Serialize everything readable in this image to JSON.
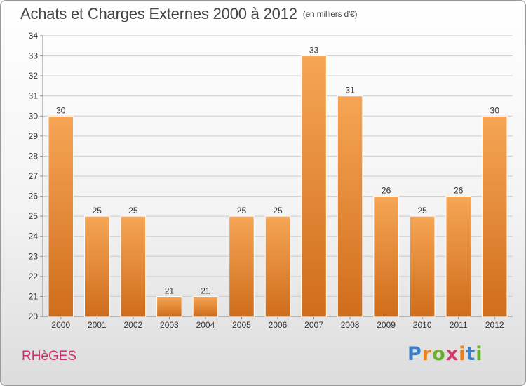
{
  "header": {
    "title": "Achats et Charges Externes 2000 à 2012",
    "unit": "(en milliers d'€)"
  },
  "place": "RHèGES",
  "logo": {
    "text": "Proxiti",
    "letter_colors": [
      "#3b7fc4",
      "#e8821e",
      "#6ab02e",
      "#d63a6a",
      "#e8821e",
      "#3b7fc4",
      "#6ab02e"
    ]
  },
  "colors": {
    "bar_top": "#f6a655",
    "bar_bottom": "#cf6d1b",
    "bar_stroke": "#ffffff",
    "grid": "#cccccc",
    "axis": "#888888",
    "text": "#333333"
  },
  "chart_data": {
    "type": "bar",
    "title": "Achats et Charges Externes 2000 à 2012",
    "subtitle": "(en milliers d'€)",
    "categories": [
      "2000",
      "2001",
      "2002",
      "2003",
      "2004",
      "2005",
      "2006",
      "2007",
      "2008",
      "2009",
      "2010",
      "2011",
      "2012"
    ],
    "values": [
      30,
      25,
      25,
      21,
      21,
      25,
      25,
      33,
      31,
      26,
      25,
      26,
      30
    ],
    "data_labels": [
      "30",
      "25",
      "25",
      "21",
      "21",
      "25",
      "25",
      "33",
      "31",
      "26",
      "25",
      "26",
      "30"
    ],
    "ylim": [
      20,
      34
    ],
    "yticks": [
      "20",
      "21",
      "22",
      "23",
      "24",
      "25",
      "26",
      "27",
      "28",
      "29",
      "30",
      "31",
      "32",
      "33",
      "34"
    ],
    "grid": true,
    "legend": "none"
  }
}
